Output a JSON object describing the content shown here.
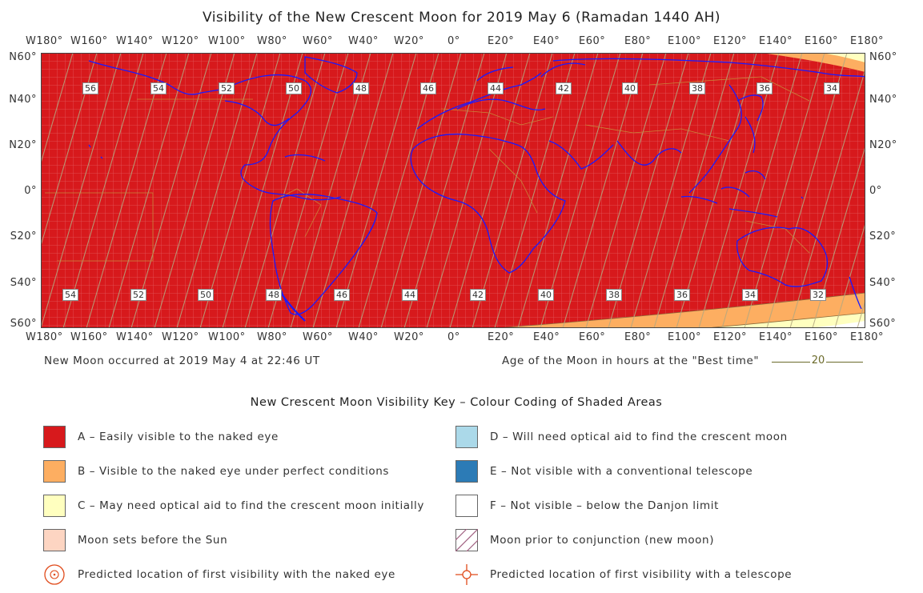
{
  "title": "Visibility of the New Crescent Moon for 2019 May 6 (Ramadan 1440 AH)",
  "longitude_labels": [
    "W180°",
    "W160°",
    "W140°",
    "W120°",
    "W100°",
    "W80°",
    "W60°",
    "W40°",
    "W20°",
    "0°",
    "E20°",
    "E40°",
    "E60°",
    "E80°",
    "E100°",
    "E120°",
    "E140°",
    "E160°",
    "E180°"
  ],
  "latitude_labels": [
    "N60°",
    "N40°",
    "N20°",
    "0°",
    "S20°",
    "S40°",
    "S60°"
  ],
  "age_labels_north": [
    "56",
    "54",
    "52",
    "50",
    "48",
    "46",
    "44",
    "42",
    "40",
    "38",
    "36",
    "34"
  ],
  "age_labels_south": [
    "54",
    "52",
    "50",
    "48",
    "46",
    "44",
    "42",
    "40",
    "38",
    "36",
    "34",
    "32"
  ],
  "new_moon_text": "New Moon occurred at 2019 May 4 at 22:46 UT",
  "age_legend_text": "Age of the Moon in hours at the \"Best time\"",
  "age_legend_sample": "20",
  "key_title": "New Crescent Moon Visibility Key – Colour Coding of Shaded Areas",
  "key": {
    "a": "A – Easily visible to the naked eye",
    "b": "B – Visible to the naked eye under perfect conditions",
    "c": "C – May need optical aid to find the crescent moon initially",
    "sets": "Moon sets before the Sun",
    "naked": "Predicted location of first visibility with the naked eye",
    "d": "D – Will need optical aid to find the crescent moon",
    "e": "E – Not visible with a conventional telescope",
    "f": "F – Not visible – below the Danjon limit",
    "prior": "Moon prior to conjunction (new moon)",
    "telescope": "Predicted location of first visibility with a telescope"
  },
  "colors": {
    "zone_a": "#d7191c",
    "zone_b": "#fdae61",
    "zone_c": "#ffffbf",
    "moon_sets": "#fdd5c2",
    "zone_d": "#abd9e9",
    "zone_e": "#2c7bb6",
    "zone_f": "#ffffff",
    "coastline": "#1a1aff",
    "borders": "#c8873a",
    "age_lines": "#a89a78"
  },
  "icons": {
    "naked_eye_marker": "circle-dot-icon",
    "telescope_marker": "crosshair-icon"
  }
}
